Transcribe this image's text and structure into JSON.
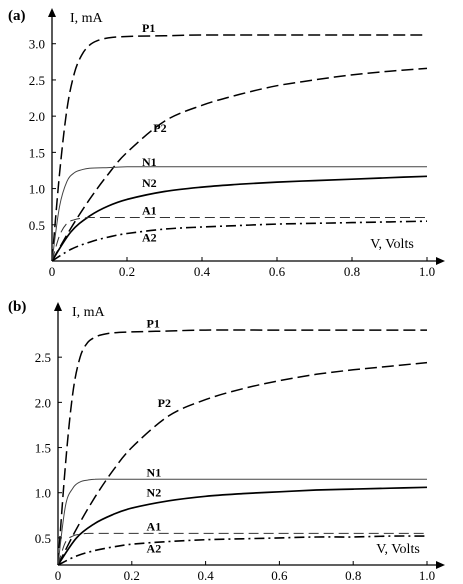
{
  "chart_data": [
    {
      "type": "line",
      "panel_label": "(a)",
      "xlabel": "V, Volts",
      "ylabel": "I, mA",
      "xlim": [
        0,
        1.0
      ],
      "ylim": [
        0,
        3.3
      ],
      "x_ticks": [
        "0",
        "0.2",
        "0.4",
        "0.6",
        "0.8",
        "1.0"
      ],
      "y_ticks": [
        "0.5",
        "1.0",
        "1.5",
        "2.0",
        "2.5",
        "3.0"
      ],
      "grid": false,
      "series": [
        {
          "name": "P1",
          "style": "long-dash",
          "x": [
            0,
            0.02,
            0.04,
            0.06,
            0.08,
            0.1,
            0.12,
            0.15,
            0.2,
            0.3,
            0.4,
            0.6,
            0.8,
            1.0
          ],
          "y": [
            0,
            1.2,
            2.1,
            2.6,
            2.85,
            2.98,
            3.04,
            3.08,
            3.1,
            3.11,
            3.12,
            3.12,
            3.12,
            3.12
          ]
        },
        {
          "name": "P2",
          "style": "long-dash",
          "x": [
            0,
            0.05,
            0.1,
            0.15,
            0.2,
            0.3,
            0.4,
            0.5,
            0.6,
            0.7,
            0.8,
            0.9,
            1.0
          ],
          "y": [
            0,
            0.45,
            0.85,
            1.2,
            1.5,
            1.93,
            2.15,
            2.3,
            2.42,
            2.5,
            2.57,
            2.62,
            2.66
          ]
        },
        {
          "name": "N1",
          "style": "thin-solid",
          "x": [
            0,
            0.02,
            0.04,
            0.06,
            0.08,
            0.1,
            0.15,
            0.2,
            0.3,
            0.5,
            1.0
          ],
          "y": [
            0,
            0.75,
            1.1,
            1.22,
            1.26,
            1.28,
            1.29,
            1.3,
            1.3,
            1.3,
            1.3
          ]
        },
        {
          "name": "N2",
          "style": "solid",
          "x": [
            0,
            0.05,
            0.1,
            0.15,
            0.2,
            0.3,
            0.4,
            0.5,
            0.6,
            0.7,
            0.8,
            0.9,
            1.0
          ],
          "y": [
            0,
            0.4,
            0.62,
            0.76,
            0.85,
            0.96,
            1.02,
            1.06,
            1.09,
            1.11,
            1.13,
            1.15,
            1.17
          ]
        },
        {
          "name": "A1",
          "style": "long-dash-thin",
          "x": [
            0,
            0.02,
            0.04,
            0.06,
            0.08,
            0.1,
            0.15,
            0.2,
            0.3,
            0.5,
            1.0
          ],
          "y": [
            0,
            0.35,
            0.52,
            0.57,
            0.59,
            0.6,
            0.6,
            0.6,
            0.6,
            0.6,
            0.6
          ]
        },
        {
          "name": "A2",
          "style": "dash-dot",
          "x": [
            0,
            0.05,
            0.1,
            0.15,
            0.2,
            0.3,
            0.4,
            0.5,
            0.6,
            0.7,
            0.8,
            0.9,
            1.0
          ],
          "y": [
            0,
            0.16,
            0.26,
            0.33,
            0.38,
            0.44,
            0.47,
            0.49,
            0.51,
            0.52,
            0.53,
            0.54,
            0.55
          ]
        }
      ]
    },
    {
      "type": "line",
      "panel_label": "(b)",
      "xlabel": "V, Volts",
      "ylabel": "I, mA",
      "xlim": [
        0,
        1.0
      ],
      "ylim": [
        0.2,
        3.0
      ],
      "x_ticks": [
        "0",
        "0.2",
        "0.4",
        "0.6",
        "0.8",
        "1.0"
      ],
      "y_ticks": [
        "0.5",
        "1.0",
        "1.5",
        "2.0",
        "2.5"
      ],
      "grid": false,
      "series": [
        {
          "name": "P1",
          "style": "long-dash",
          "x": [
            0,
            0.02,
            0.04,
            0.06,
            0.08,
            0.1,
            0.12,
            0.15,
            0.2,
            0.3,
            0.4,
            0.6,
            0.8,
            1.0
          ],
          "y": [
            0.2,
            1.3,
            2.1,
            2.5,
            2.66,
            2.72,
            2.75,
            2.77,
            2.78,
            2.79,
            2.8,
            2.8,
            2.8,
            2.8
          ]
        },
        {
          "name": "P2",
          "style": "long-dash",
          "x": [
            0,
            0.05,
            0.1,
            0.15,
            0.2,
            0.3,
            0.4,
            0.5,
            0.6,
            0.7,
            0.8,
            0.9,
            1.0
          ],
          "y": [
            0.2,
            0.6,
            0.95,
            1.25,
            1.5,
            1.85,
            2.03,
            2.15,
            2.24,
            2.31,
            2.36,
            2.4,
            2.44
          ]
        },
        {
          "name": "N1",
          "style": "thin-solid",
          "x": [
            0,
            0.02,
            0.04,
            0.06,
            0.08,
            0.1,
            0.15,
            0.2,
            0.3,
            0.5,
            1.0
          ],
          "y": [
            0.2,
            0.85,
            1.05,
            1.12,
            1.14,
            1.15,
            1.15,
            1.15,
            1.15,
            1.15,
            1.15
          ]
        },
        {
          "name": "N2",
          "style": "solid",
          "x": [
            0,
            0.05,
            0.1,
            0.15,
            0.2,
            0.3,
            0.4,
            0.5,
            0.6,
            0.7,
            0.8,
            0.9,
            1.0
          ],
          "y": [
            0.2,
            0.5,
            0.66,
            0.76,
            0.83,
            0.91,
            0.96,
            0.99,
            1.01,
            1.03,
            1.04,
            1.05,
            1.06
          ]
        },
        {
          "name": "A1",
          "style": "long-dash-thin",
          "x": [
            0,
            0.02,
            0.04,
            0.06,
            0.08,
            0.1,
            0.15,
            0.2,
            0.3,
            0.5,
            1.0
          ],
          "y": [
            0.2,
            0.45,
            0.52,
            0.54,
            0.55,
            0.55,
            0.55,
            0.55,
            0.55,
            0.55,
            0.55
          ]
        },
        {
          "name": "A2",
          "style": "dash-dot",
          "x": [
            0,
            0.05,
            0.1,
            0.15,
            0.2,
            0.3,
            0.4,
            0.5,
            0.6,
            0.7,
            0.8,
            0.9,
            1.0
          ],
          "y": [
            0.2,
            0.3,
            0.36,
            0.4,
            0.43,
            0.46,
            0.48,
            0.49,
            0.5,
            0.51,
            0.51,
            0.52,
            0.52
          ]
        }
      ]
    }
  ]
}
